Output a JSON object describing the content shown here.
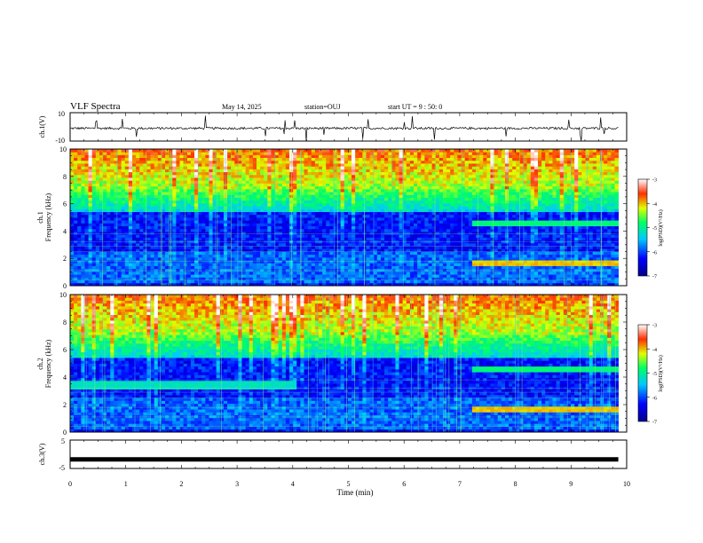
{
  "header": {
    "title": "VLF Spectra",
    "date": "May 14, 2025",
    "station": "station=OUJ",
    "start": "start  UT =  9 : 50: 0"
  },
  "chart_data": [
    {
      "type": "line",
      "name": "ch1-waveform",
      "ylabel": "ch.1(V)",
      "ylim": [
        -10,
        10
      ],
      "ytick_labels": [
        "10",
        "-10"
      ],
      "baseline": -1
    },
    {
      "type": "heatmap",
      "name": "ch1-spectrogram",
      "ylabel": "ch.1\nFrequency  (kHz)",
      "ylim": [
        0,
        10
      ],
      "yticks": [
        0,
        2,
        4,
        6,
        8,
        10
      ],
      "xlim": [
        0,
        10
      ],
      "colorbar": {
        "label": "log(PSD)(V²/Hz)",
        "range": [
          -7,
          -3
        ],
        "ticks": [
          "-3",
          "-4",
          "-5",
          "-6",
          "-7"
        ]
      },
      "events": {
        "switch_time_min": 7.2,
        "post_switch_bands_khz": [
          1.6,
          4.5
        ]
      }
    },
    {
      "type": "heatmap",
      "name": "ch2-spectrogram",
      "ylabel": "ch.2\nFrequency  (kHz)",
      "ylim": [
        0,
        10
      ],
      "yticks": [
        0,
        2,
        4,
        6,
        8,
        10
      ],
      "xlim": [
        0,
        10
      ],
      "colorbar": {
        "label": "log(PSD)(V²/Hz)",
        "range": [
          -7,
          -3
        ],
        "ticks": [
          "-3",
          "-4",
          "-5",
          "-6",
          "-7"
        ]
      },
      "events": {
        "early_band_khz": 3.4,
        "early_band_end_min": 4.1,
        "switch_time_min": 7.2,
        "post_switch_bands_khz": [
          1.6,
          4.5
        ]
      }
    },
    {
      "type": "line",
      "name": "ch3-waveform",
      "ylabel": "ch.3(V)",
      "ylim": [
        -5,
        5
      ],
      "ytick_labels": [
        "5",
        "-5"
      ],
      "baseline": -1.8
    }
  ],
  "xaxis": {
    "label": "Time  (min)",
    "ticks": [
      "0",
      "1",
      "2",
      "3",
      "4",
      "5",
      "6",
      "7",
      "8",
      "9",
      "10"
    ],
    "range": [
      0,
      10
    ],
    "data_end": 9.85
  },
  "colors": {
    "frame": "#000000",
    "background": "#ffffff"
  }
}
